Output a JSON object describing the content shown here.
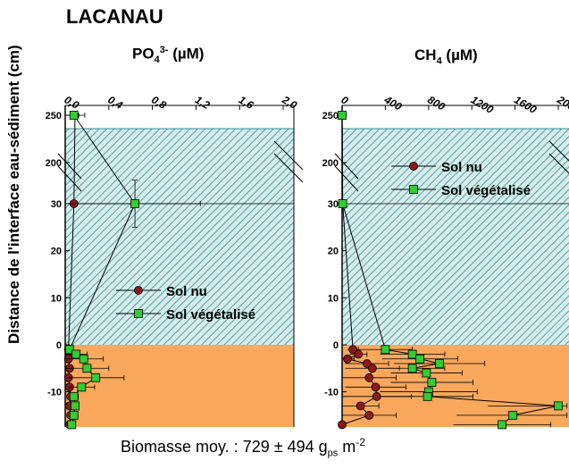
{
  "site_title": "LACANAU",
  "y_axis_label": "Distance de l'interface eau-sédiment (cm)",
  "footer": {
    "text": "Biomasse moy. : 729 ± 494 g",
    "sub": "ps",
    "unit": " m",
    "sup": "-2"
  },
  "colors": {
    "water": "#2f8f8f",
    "sediment": "#f9a85c",
    "sol_nu": "#8b1a1a",
    "sol_vegetalise": "#33cc33"
  },
  "chart_data": [
    {
      "type": "line",
      "title": "PO43- (µM)",
      "title_parts": {
        "main": "PO",
        "sub": "4",
        "sup": "3-",
        "unit": " (µM)"
      },
      "xticks": [
        "0,0",
        "0,4",
        "0,8",
        "1,2",
        "1,6",
        "2,0"
      ],
      "xlim": [
        0,
        2.0
      ],
      "ytick_labels": [
        "250",
        "200",
        "30",
        "20",
        "10",
        "0",
        "-10"
      ],
      "broken_axis": true,
      "legend": "middle",
      "series": [
        {
          "name": "Sol nu",
          "marker": "circle",
          "points": [
            [
              0.09,
              250
            ],
            [
              0.08,
              30
            ],
            [
              0.03,
              -1
            ],
            [
              0.05,
              -2
            ],
            [
              0.03,
              -3
            ],
            [
              0.04,
              -5
            ],
            [
              0.03,
              -7
            ],
            [
              0.04,
              -9
            ],
            [
              0.05,
              -11
            ],
            [
              0.04,
              -13
            ],
            [
              0.05,
              -15
            ],
            [
              0.04,
              -17
            ]
          ],
          "xerr": [
            0.03,
            0.02,
            0.01,
            0.01,
            0.01,
            0.01,
            0.01,
            0.01,
            0.01,
            0.01,
            0.01,
            0.01
          ]
        },
        {
          "name": "Sol végétalisé",
          "marker": "square",
          "points": [
            [
              0.08,
              250
            ],
            [
              0.64,
              30
            ],
            [
              0.04,
              -1
            ],
            [
              0.1,
              -2
            ],
            [
              0.17,
              -3
            ],
            [
              0.2,
              -5
            ],
            [
              0.28,
              -7
            ],
            [
              0.15,
              -9
            ],
            [
              0.08,
              -11
            ],
            [
              0.09,
              -13
            ],
            [
              0.08,
              -15
            ],
            [
              0.06,
              -17
            ]
          ],
          "xerr": [
            0.1,
            0.6,
            0.02,
            0.1,
            0.18,
            0.2,
            0.26,
            0.12,
            0.04,
            0.03,
            0.02,
            0.02
          ],
          "yerr": [
            0,
            5,
            0,
            0,
            0,
            0,
            0,
            0,
            0,
            0,
            0,
            0
          ]
        }
      ]
    },
    {
      "type": "line",
      "title": "CH4 (µM)",
      "title_parts": {
        "main": "CH",
        "sub": "4",
        "sup": "",
        "unit": " (µM)"
      },
      "xticks": [
        "0",
        "400",
        "800",
        "1200",
        "1600",
        "2000"
      ],
      "xlim": [
        0,
        2000
      ],
      "ytick_labels": [
        "250",
        "200",
        "30",
        "20",
        "10",
        "0",
        "-10"
      ],
      "broken_axis": true,
      "legend": "top-right",
      "series": [
        {
          "name": "Sol nu",
          "marker": "circle",
          "points": [
            [
              0,
              250
            ],
            [
              5,
              30
            ],
            [
              100,
              -1
            ],
            [
              150,
              -2
            ],
            [
              50,
              -3
            ],
            [
              230,
              -4
            ],
            [
              280,
              -5
            ],
            [
              250,
              -7
            ],
            [
              310,
              -9
            ],
            [
              320,
              -11
            ],
            [
              170,
              -13
            ],
            [
              250,
              -15
            ],
            [
              0,
              -17
            ]
          ],
          "xerr": [
            0,
            0,
            50,
            80,
            60,
            200,
            250,
            250,
            280,
            320,
            170,
            250,
            0
          ]
        },
        {
          "name": "Sol végétalisé",
          "marker": "square",
          "points": [
            [
              0,
              250
            ],
            [
              5,
              30
            ],
            [
              400,
              -1
            ],
            [
              650,
              -2
            ],
            [
              720,
              -3
            ],
            [
              900,
              -4
            ],
            [
              650,
              -5
            ],
            [
              780,
              -6
            ],
            [
              830,
              -8
            ],
            [
              800,
              -10
            ],
            [
              790,
              -11
            ],
            [
              2000,
              -13
            ],
            [
              1580,
              -15
            ],
            [
              1480,
              -17
            ]
          ],
          "xerr": [
            0,
            0,
            250,
            300,
            350,
            420,
            300,
            330,
            380,
            450,
            420,
            650,
            520,
            450
          ]
        }
      ]
    }
  ]
}
